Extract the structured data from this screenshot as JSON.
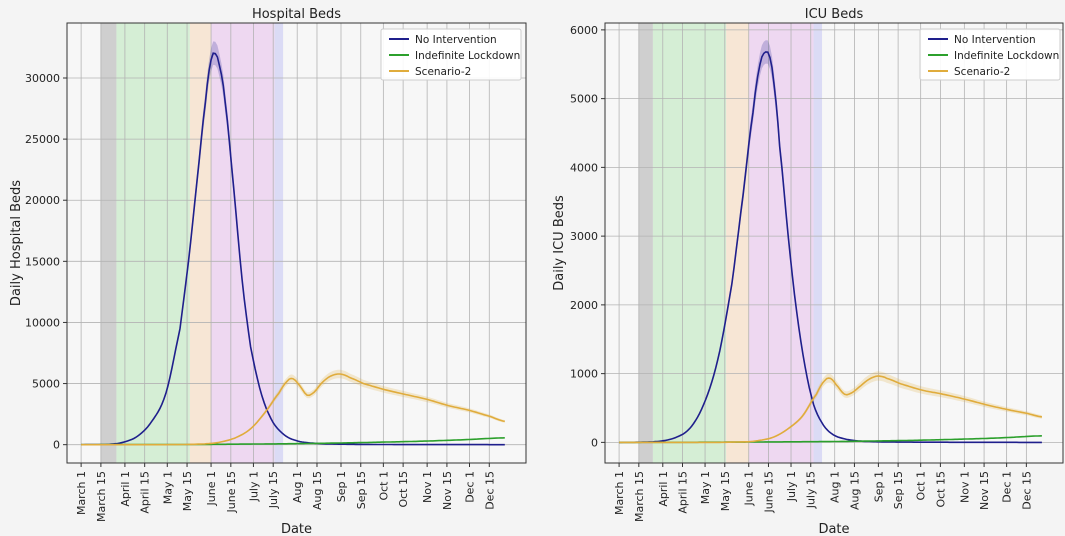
{
  "colors": {
    "no_intervention": "#1f1f8c",
    "indefinite_lockdown": "#2ca02c",
    "scenario_2": "#e0ac3c",
    "band_gray": "#c8c8c8",
    "band_green": "#cfeccf",
    "band_orange": "#f7e3cf",
    "band_purple": "#ecd2f0",
    "band_blue": "#d6d6f5"
  },
  "chart_data": [
    {
      "type": "line",
      "title": "Hospital Beds",
      "xlabel": "Date",
      "ylabel": "Daily Hospital Beds",
      "x_ticks": [
        "March 1",
        "March 15",
        "April 1",
        "April 15",
        "May 1",
        "May 15",
        "June 1",
        "June 15",
        "July 1",
        "July 15",
        "Aug 1",
        "Aug 15",
        "Sep 1",
        "Sep 15",
        "Oct 1",
        "Oct 15",
        "Nov 1",
        "Nov 15",
        "Dec 1",
        "Dec 15"
      ],
      "x_tick_days": [
        0,
        14,
        31,
        45,
        61,
        75,
        92,
        106,
        122,
        136,
        153,
        167,
        184,
        198,
        214,
        228,
        245,
        259,
        275,
        289
      ],
      "y_ticks": [
        0,
        5000,
        10000,
        15000,
        20000,
        25000,
        30000
      ],
      "xlim_days": [
        -10,
        315
      ],
      "ylim": [
        -1500,
        34500
      ],
      "grid": true,
      "legend_position": "top-right",
      "bands": [
        {
          "start": 14,
          "end": 25,
          "color": "band_gray"
        },
        {
          "start": 25,
          "end": 77,
          "color": "band_green"
        },
        {
          "start": 77,
          "end": 92,
          "color": "band_orange"
        },
        {
          "start": 92,
          "end": 137,
          "color": "band_purple"
        },
        {
          "start": 137,
          "end": 143,
          "color": "band_blue"
        }
      ],
      "series": [
        {
          "name": "No Intervention",
          "color": "no_intervention",
          "ci": 0.03,
          "x": [
            0,
            20,
            30,
            40,
            50,
            60,
            70,
            76,
            82,
            88,
            92,
            95,
            98,
            102,
            108,
            114,
            120,
            128,
            136,
            145,
            155,
            170,
            190,
            220,
            250,
            280,
            300
          ],
          "y": [
            0,
            30,
            200,
            700,
            1900,
            4200,
            9500,
            15000,
            21500,
            28000,
            31500,
            32000,
            31000,
            28000,
            21000,
            13500,
            8000,
            4000,
            1800,
            700,
            250,
            80,
            30,
            10,
            5,
            2,
            1
          ]
        },
        {
          "name": "Indefinite Lockdown",
          "color": "indefinite_lockdown",
          "ci": 0.0,
          "x": [
            0,
            60,
            92,
            120,
            150,
            180,
            210,
            240,
            270,
            300
          ],
          "y": [
            0,
            10,
            25,
            50,
            80,
            130,
            200,
            280,
            400,
            560
          ]
        },
        {
          "name": "Scenario-2",
          "color": "scenario_2",
          "ci": 0.06,
          "x": [
            0,
            60,
            80,
            92,
            100,
            110,
            120,
            130,
            140,
            146,
            150,
            155,
            160,
            165,
            170,
            175,
            180,
            185,
            190,
            200,
            215,
            230,
            245,
            260,
            275,
            290,
            300
          ],
          "y": [
            0,
            0,
            30,
            100,
            250,
            600,
            1300,
            2600,
            4200,
            5200,
            5400,
            4800,
            4050,
            4300,
            5000,
            5500,
            5750,
            5750,
            5500,
            5000,
            4500,
            4100,
            3700,
            3200,
            2800,
            2300,
            1900
          ]
        }
      ]
    },
    {
      "type": "line",
      "title": "ICU Beds",
      "xlabel": "Date",
      "ylabel": "Daily ICU Beds",
      "x_ticks": [
        "March 1",
        "March 15",
        "April 1",
        "April 15",
        "May 1",
        "May 15",
        "June 1",
        "June 15",
        "July 1",
        "July 15",
        "Aug 1",
        "Aug 15",
        "Sep 1",
        "Sep 15",
        "Oct 1",
        "Oct 15",
        "Nov 1",
        "Nov 15",
        "Dec 1",
        "Dec 15"
      ],
      "x_tick_days": [
        0,
        14,
        31,
        45,
        61,
        75,
        92,
        106,
        122,
        136,
        153,
        167,
        184,
        198,
        214,
        228,
        245,
        259,
        275,
        289
      ],
      "y_ticks": [
        0,
        1000,
        2000,
        3000,
        4000,
        5000,
        6000
      ],
      "xlim_days": [
        -10,
        315
      ],
      "ylim": [
        -300,
        6100
      ],
      "grid": true,
      "legend_position": "top-right",
      "bands": [
        {
          "start": 14,
          "end": 24,
          "color": "band_gray"
        },
        {
          "start": 24,
          "end": 76,
          "color": "band_green"
        },
        {
          "start": 76,
          "end": 92,
          "color": "band_orange"
        },
        {
          "start": 92,
          "end": 138,
          "color": "band_purple"
        },
        {
          "start": 138,
          "end": 144,
          "color": "band_blue"
        }
      ],
      "series": [
        {
          "name": "No Intervention",
          "color": "no_intervention",
          "ci": 0.03,
          "x": [
            0,
            20,
            30,
            40,
            50,
            60,
            70,
            80,
            88,
            95,
            100,
            104,
            107,
            110,
            114,
            120,
            126,
            132,
            138,
            145,
            152,
            160,
            170,
            185,
            200,
            230,
            260,
            300
          ],
          "y": [
            0,
            5,
            20,
            70,
            200,
            550,
            1200,
            2300,
            3600,
            4800,
            5500,
            5680,
            5600,
            5200,
            4300,
            3000,
            1900,
            1100,
            550,
            250,
            110,
            50,
            20,
            8,
            4,
            2,
            1,
            0
          ]
        },
        {
          "name": "Indefinite Lockdown",
          "color": "indefinite_lockdown",
          "ci": 0.0,
          "x": [
            0,
            60,
            92,
            120,
            150,
            180,
            210,
            240,
            270,
            300
          ],
          "y": [
            0,
            2,
            5,
            8,
            12,
            20,
            30,
            45,
            65,
            95
          ]
        },
        {
          "name": "Scenario-2",
          "color": "scenario_2",
          "ci": 0.07,
          "x": [
            0,
            70,
            92,
            100,
            110,
            120,
            130,
            140,
            146,
            150,
            154,
            160,
            165,
            170,
            176,
            182,
            186,
            190,
            200,
            215,
            230,
            245,
            260,
            275,
            290,
            300
          ],
          "y": [
            0,
            0,
            10,
            30,
            80,
            200,
            380,
            700,
            900,
            930,
            840,
            700,
            720,
            800,
            900,
            960,
            960,
            930,
            850,
            760,
            700,
            630,
            550,
            480,
            420,
            370
          ]
        }
      ]
    }
  ]
}
